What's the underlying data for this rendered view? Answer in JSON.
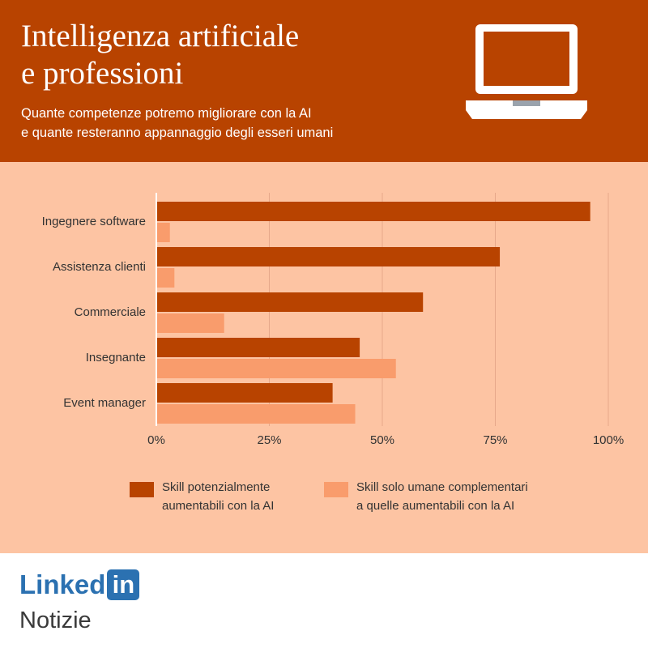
{
  "header": {
    "title_line1": "Intelligenza artificiale",
    "title_line2": "e professioni",
    "subtitle_line1": "Quante competenze potremo migliorare con la AI",
    "subtitle_line2": "e quante resteranno appannaggio degli esseri umani",
    "icon": "laptop-icon"
  },
  "colors": {
    "header_bg": "#b84300",
    "chart_bg": "#fdc4a3",
    "series_dark": "#b84300",
    "series_light": "#f99c6c",
    "linkedin_blue": "#2b71b1"
  },
  "chart_data": {
    "type": "bar",
    "orientation": "horizontal",
    "categories": [
      "Ingegnere software",
      "Assistenza  clienti",
      "Commerciale",
      "Insegnante",
      "Event manager"
    ],
    "series": [
      {
        "name": "Skill potenzialmente aumentabili con la AI",
        "color": "#b84300",
        "values": [
          96,
          76,
          59,
          45,
          39
        ]
      },
      {
        "name": "Skill solo umane complementari a quelle aumentabili con la AI",
        "color": "#f99c6c",
        "values": [
          3,
          4,
          15,
          53,
          44
        ]
      }
    ],
    "x_ticks": [
      0,
      25,
      50,
      75,
      100
    ],
    "x_tick_labels": [
      "0%",
      "25%",
      "50%",
      "75%",
      "100%"
    ],
    "xlim": [
      0,
      100
    ],
    "grid": true,
    "legend_position": "bottom"
  },
  "legend": [
    {
      "line1": "Skill potenzialmente",
      "line2": "aumentabili con la AI",
      "color": "#b84300"
    },
    {
      "line1": "Skill solo umane complementari",
      "line2": "a quelle aumentabili con la AI",
      "color": "#f99c6c"
    }
  ],
  "footer": {
    "logo_text": "Linked",
    "logo_box": "in",
    "brand": "Notizie"
  }
}
